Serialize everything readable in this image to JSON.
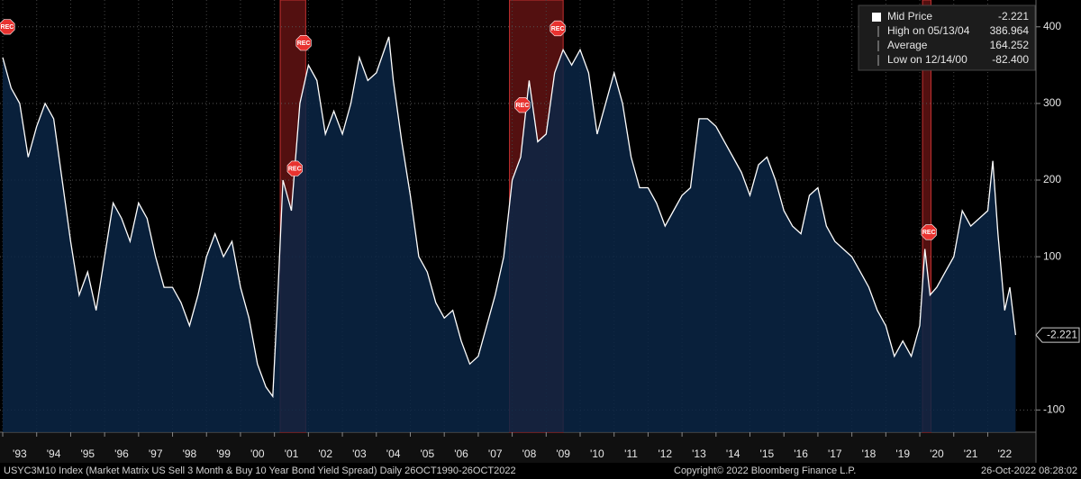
{
  "chart_data": {
    "type": "area",
    "series": [
      {
        "name": "Mid Price",
        "color": "#ffffff",
        "fill": "#0b2645",
        "x": [
          1993.0,
          1993.25,
          1993.5,
          1993.75,
          1994.0,
          1994.25,
          1994.5,
          1994.75,
          1995.0,
          1995.25,
          1995.5,
          1995.75,
          1996.0,
          1996.25,
          1996.5,
          1996.75,
          1997.0,
          1997.25,
          1997.5,
          1997.75,
          1998.0,
          1998.25,
          1998.5,
          1998.75,
          1999.0,
          1999.25,
          1999.5,
          1999.75,
          2000.0,
          2000.25,
          2000.5,
          2000.75,
          2000.95,
          2001.1,
          2001.25,
          2001.5,
          2001.75,
          2002.0,
          2002.25,
          2002.5,
          2002.75,
          2003.0,
          2003.25,
          2003.5,
          2003.75,
          2004.0,
          2004.37,
          2004.5,
          2004.75,
          2005.0,
          2005.25,
          2005.5,
          2005.75,
          2006.0,
          2006.25,
          2006.5,
          2006.75,
          2007.0,
          2007.25,
          2007.5,
          2007.75,
          2008.0,
          2008.25,
          2008.5,
          2008.75,
          2009.0,
          2009.25,
          2009.5,
          2009.75,
          2010.0,
          2010.25,
          2010.5,
          2010.75,
          2011.0,
          2011.25,
          2011.5,
          2011.75,
          2012.0,
          2012.25,
          2012.5,
          2012.75,
          2013.0,
          2013.25,
          2013.5,
          2013.75,
          2014.0,
          2014.25,
          2014.5,
          2014.75,
          2015.0,
          2015.25,
          2015.5,
          2015.75,
          2016.0,
          2016.25,
          2016.5,
          2016.75,
          2017.0,
          2017.25,
          2017.5,
          2017.75,
          2018.0,
          2018.25,
          2018.5,
          2018.75,
          2019.0,
          2019.25,
          2019.5,
          2019.75,
          2020.0,
          2020.15,
          2020.3,
          2020.5,
          2020.75,
          2021.0,
          2021.25,
          2021.5,
          2021.75,
          2022.0,
          2022.15,
          2022.3,
          2022.5,
          2022.65,
          2022.82
        ],
        "values": [
          360,
          320,
          300,
          230,
          270,
          300,
          280,
          200,
          120,
          50,
          80,
          30,
          100,
          170,
          150,
          120,
          170,
          150,
          100,
          60,
          60,
          40,
          10,
          50,
          100,
          130,
          100,
          120,
          60,
          20,
          -40,
          -70,
          -82.4,
          50,
          200,
          160,
          300,
          350,
          330,
          260,
          290,
          260,
          300,
          360,
          330,
          340,
          386.964,
          330,
          250,
          180,
          100,
          80,
          40,
          20,
          30,
          -10,
          -40,
          -30,
          10,
          50,
          100,
          200,
          230,
          330,
          250,
          260,
          340,
          370,
          350,
          370,
          340,
          260,
          300,
          340,
          300,
          230,
          190,
          190,
          170,
          140,
          160,
          180,
          190,
          280,
          280,
          270,
          250,
          230,
          210,
          180,
          220,
          230,
          200,
          160,
          140,
          130,
          180,
          190,
          140,
          120,
          110,
          100,
          80,
          60,
          30,
          10,
          -30,
          -10,
          -30,
          10,
          110,
          50,
          60,
          80,
          100,
          160,
          140,
          150,
          160,
          225,
          130,
          30,
          60,
          -2.221
        ]
      }
    ],
    "xlim": [
      1992.92,
      2023.42
    ],
    "ylim": [
      -129,
      435
    ],
    "yticks": [
      400,
      300,
      200,
      100,
      -100
    ],
    "xticks": [
      {
        "value": 1993,
        "label": "'93"
      },
      {
        "value": 1994,
        "label": "'94"
      },
      {
        "value": 1995,
        "label": "'95"
      },
      {
        "value": 1996,
        "label": "'96"
      },
      {
        "value": 1997,
        "label": "'97"
      },
      {
        "value": 1998,
        "label": "'98"
      },
      {
        "value": 1999,
        "label": "'99"
      },
      {
        "value": 2000,
        "label": "'00"
      },
      {
        "value": 2001,
        "label": "'01"
      },
      {
        "value": 2002,
        "label": "'02"
      },
      {
        "value": 2003,
        "label": "'03"
      },
      {
        "value": 2004,
        "label": "'04"
      },
      {
        "value": 2005,
        "label": "'05"
      },
      {
        "value": 2006,
        "label": "'06"
      },
      {
        "value": 2007,
        "label": "'07"
      },
      {
        "value": 2008,
        "label": "'08"
      },
      {
        "value": 2009,
        "label": "'09"
      },
      {
        "value": 2010,
        "label": "'10"
      },
      {
        "value": 2011,
        "label": "'11"
      },
      {
        "value": 2012,
        "label": "'12"
      },
      {
        "value": 2013,
        "label": "'13"
      },
      {
        "value": 2014,
        "label": "'14"
      },
      {
        "value": 2015,
        "label": "'15"
      },
      {
        "value": 2016,
        "label": "'16"
      },
      {
        "value": 2017,
        "label": "'17"
      },
      {
        "value": 2018,
        "label": "'18"
      },
      {
        "value": 2019,
        "label": "'19"
      },
      {
        "value": 2020,
        "label": "'20"
      },
      {
        "value": 2021,
        "label": "'21"
      },
      {
        "value": 2022,
        "label": "'22"
      }
    ],
    "recessions": [
      [
        2001.17,
        2001.92
      ],
      [
        2007.92,
        2009.5
      ],
      [
        2020.08,
        2020.33
      ]
    ],
    "annotations": [
      {
        "text": "REC",
        "x": 1993.13,
        "y": 400
      },
      {
        "text": "REC",
        "x": 2001.86,
        "y": 379
      },
      {
        "text": "REC",
        "x": 2001.6,
        "y": 215
      },
      {
        "text": "REC",
        "x": 2008.3,
        "y": 298
      },
      {
        "text": "REC",
        "x": 2009.34,
        "y": 398
      },
      {
        "text": "REC",
        "x": 2020.27,
        "y": 132
      }
    ],
    "stats": [
      {
        "label": "Mid Price",
        "value": "-2.221"
      },
      {
        "label": "High on 05/13/04",
        "value": "386.964"
      },
      {
        "label": "Average",
        "value": "164.252"
      },
      {
        "label": "Low on 12/14/00",
        "value": "-82.400"
      }
    ],
    "footer": {
      "left": "USYC3M10 Index (Market Matrix US Sell 3 Month & Buy 10 Year Bond Yield Spread)  Daily 26OCT1990-26OCT2022",
      "center": "Copyright© 2022 Bloomberg Finance L.P.",
      "right": "26-Oct-2022 08:28:02"
    }
  }
}
